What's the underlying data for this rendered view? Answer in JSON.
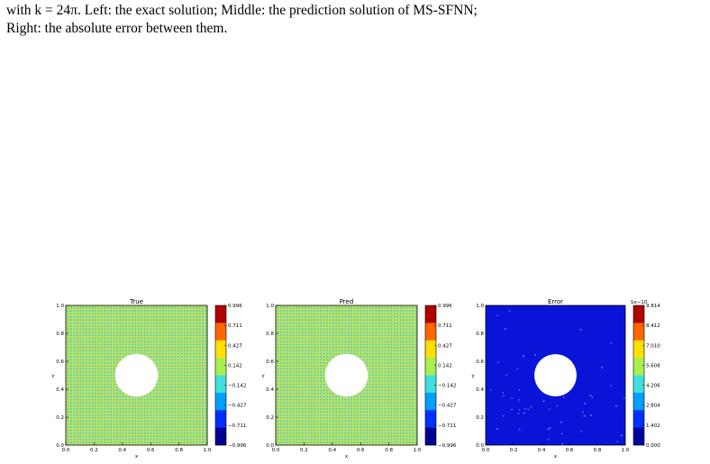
{
  "caption": {
    "line1": "with k = 24π. Left: the exact solution; Middle: the prediction solution of MS-SFNN;",
    "line2": "Right: the absolute error between them."
  },
  "chart_data": [
    {
      "type": "heatmap",
      "title": "True",
      "xlabel": "x",
      "ylabel": "y",
      "xlim": [
        0.0,
        1.0
      ],
      "ylim": [
        0.0,
        1.0
      ],
      "xticks": [
        "0.0",
        "0.2",
        "0.4",
        "0.6",
        "0.8",
        "1.0"
      ],
      "yticks": [
        "0.0",
        "0.2",
        "0.4",
        "0.6",
        "0.8",
        "1.0"
      ],
      "pattern": "checker",
      "hole_center": [
        0.5,
        0.5
      ],
      "hole_radius": 0.14,
      "colorbar": {
        "ticks": [
          "0.996",
          "0.711",
          "0.427",
          "0.142",
          "−0.142",
          "−0.427",
          "−0.711",
          "−0.996"
        ],
        "colors": [
          "#b00000",
          "#ff6600",
          "#ffe000",
          "#a8f050",
          "#40e0e0",
          "#00a0ff",
          "#0030ff",
          "#000090"
        ]
      }
    },
    {
      "type": "heatmap",
      "title": "Pred",
      "xlabel": "x",
      "ylabel": "y",
      "xlim": [
        0.0,
        1.0
      ],
      "ylim": [
        0.0,
        1.0
      ],
      "xticks": [
        "0.0",
        "0.2",
        "0.4",
        "0.6",
        "0.8",
        "1.0"
      ],
      "yticks": [
        "0.0",
        "0.2",
        "0.4",
        "0.6",
        "0.8",
        "1.0"
      ],
      "pattern": "checker",
      "hole_center": [
        0.5,
        0.5
      ],
      "hole_radius": 0.14,
      "colorbar": {
        "ticks": [
          "0.996",
          "0.711",
          "0.427",
          "0.142",
          "−0.142",
          "−0.427",
          "−0.711",
          "−0.996"
        ],
        "colors": [
          "#b00000",
          "#ff6600",
          "#ffe000",
          "#a8f050",
          "#40e0e0",
          "#00a0ff",
          "#0030ff",
          "#000090"
        ]
      }
    },
    {
      "type": "heatmap",
      "title": "Error",
      "xlabel": "x",
      "ylabel": "y",
      "xlim": [
        0.0,
        1.0
      ],
      "ylim": [
        0.0,
        1.0
      ],
      "xticks": [
        "0.0",
        "0.2",
        "0.4",
        "0.6",
        "0.8",
        "1.0"
      ],
      "yticks": [
        "0.0",
        "0.2",
        "0.4",
        "0.6",
        "0.8",
        "1.0"
      ],
      "pattern": "error",
      "hole_center": [
        0.5,
        0.5
      ],
      "hole_radius": 0.14,
      "colorbar": {
        "scale_label": "1e−10",
        "ticks": [
          "9.814",
          "8.412",
          "7.010",
          "5.608",
          "4.206",
          "2.804",
          "1.402",
          "0.000"
        ],
        "colors": [
          "#b00000",
          "#ff6600",
          "#ffe000",
          "#a8f050",
          "#40e0e0",
          "#00a0ff",
          "#0030ff",
          "#0000a0"
        ]
      }
    }
  ]
}
